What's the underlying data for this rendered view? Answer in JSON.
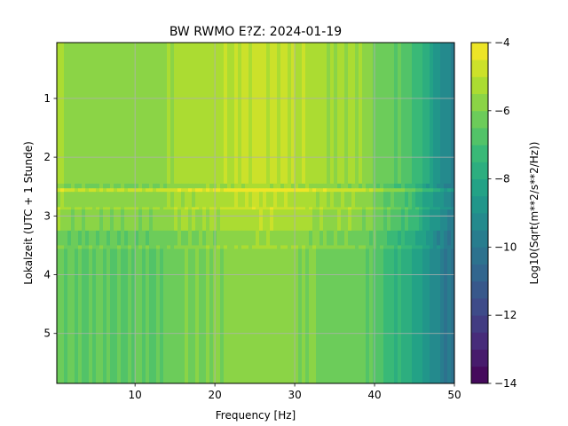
{
  "chart_data": {
    "type": "heatmap",
    "title": "BW RWMO  E?Z: 2024-01-19",
    "xlabel": "Frequency [Hz]",
    "ylabel": "Lokalzeit (UTC + 1 Stunde)",
    "xlim": [
      0.2,
      50
    ],
    "ylim": [
      5.85,
      0.05
    ],
    "y_inverted": true,
    "grid": true,
    "x_ticks": [
      10,
      20,
      30,
      40,
      50
    ],
    "y_ticks": [
      1,
      2,
      3,
      4,
      5
    ],
    "colormap": "viridis",
    "colorbar": {
      "label": "Log10(Sqrt(m**2/s**2/Hz))",
      "range": [
        -14,
        -4
      ],
      "ticks": [
        -14,
        -12,
        -10,
        -8,
        -6,
        -4
      ],
      "levels": 20
    },
    "x_breakpoints_hz": [
      0,
      0.7,
      1.5,
      13,
      15,
      20,
      23,
      26,
      29,
      32,
      34,
      38,
      39,
      40,
      41,
      42,
      44,
      45,
      46,
      47,
      48,
      49,
      50
    ],
    "base_spectrum_log10": [
      -5.6,
      -5.4,
      -5.8,
      -5.8,
      -5.5,
      -5.3,
      -5.1,
      -5.0,
      -5.1,
      -5.3,
      -5.5,
      -5.6,
      -5.8,
      -6.0,
      -6.3,
      -6.6,
      -6.9,
      -7.3,
      -7.8,
      -8.3,
      -8.8,
      -9.3,
      -9.6
    ],
    "time_bands": [
      {
        "from": 0.05,
        "to": 2.45,
        "offset": 0.1
      },
      {
        "from": 2.45,
        "to": 2.53,
        "offset": -0.3
      },
      {
        "from": 2.53,
        "to": 2.59,
        "offset": 0.9
      },
      {
        "from": 2.59,
        "to": 2.85,
        "offset": 0.0
      },
      {
        "from": 2.85,
        "to": 2.89,
        "offset": 0.4
      },
      {
        "from": 2.89,
        "to": 3.25,
        "offset": -0.1
      },
      {
        "from": 3.25,
        "to": 3.5,
        "offset": -0.6
      },
      {
        "from": 3.5,
        "to": 3.56,
        "offset": -0.3
      },
      {
        "from": 3.56,
        "to": 5.85,
        "offset": -0.7
      }
    ]
  }
}
